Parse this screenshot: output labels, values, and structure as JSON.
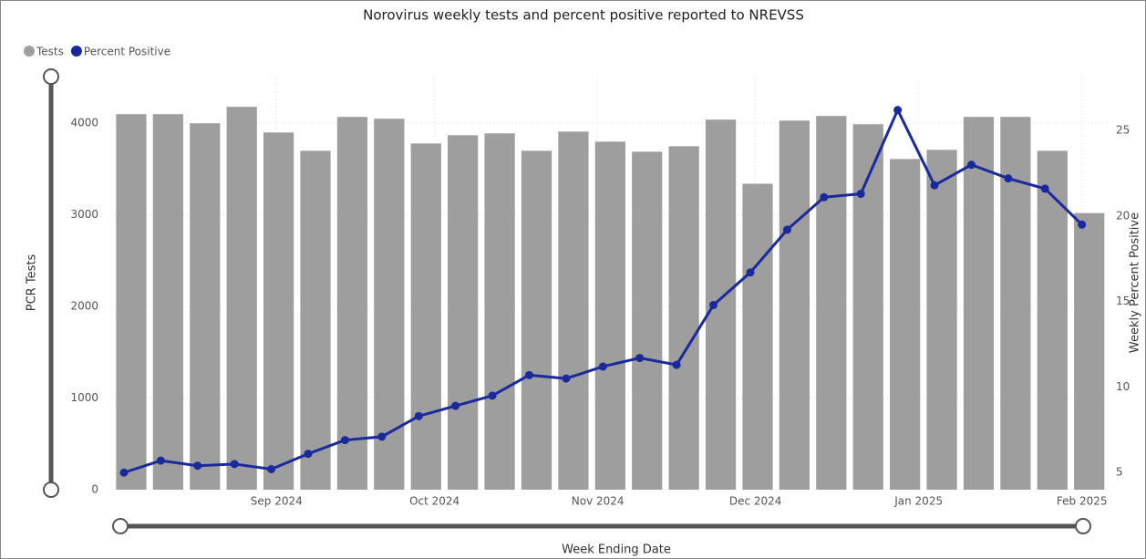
{
  "chart_data": {
    "type": "bar-line",
    "title": "Norovirus weekly tests and percent positive reported to NREVSS",
    "x_label": "Week Ending Date",
    "y_label": "PCR Tests",
    "y2_label": "Weekly Percent Positive",
    "categories": [
      null,
      null,
      null,
      null,
      null,
      null,
      null,
      null,
      null,
      null,
      null,
      null,
      null,
      null,
      null,
      null,
      null,
      null,
      null,
      null,
      null,
      null,
      null,
      null,
      null,
      null,
      null
    ],
    "x": [
      0,
      1,
      2,
      3,
      4,
      5,
      6,
      7,
      8,
      9,
      10,
      11,
      12,
      13,
      14,
      15,
      16,
      17,
      18,
      19,
      20,
      21,
      22,
      23,
      24,
      25,
      26
    ],
    "xlim": [
      -0.37,
      26.7
    ],
    "xticks": [
      {
        "value": 4.14,
        "label": "Sep 2024"
      },
      {
        "value": 8.43,
        "label": "Oct 2024"
      },
      {
        "value": 12.86,
        "label": "Nov 2024"
      },
      {
        "value": 17.14,
        "label": "Dec 2024"
      },
      {
        "value": 21.57,
        "label": "Jan 2025"
      },
      {
        "value": 26,
        "label": "Feb 2025"
      }
    ],
    "ylim": [
      0,
      4500
    ],
    "yticks": [
      0,
      1000,
      2000,
      3000,
      4000
    ],
    "y2lim": [
      4,
      28.1
    ],
    "y2ticks": [
      5,
      10,
      15,
      20,
      25
    ],
    "grid": true,
    "legend": "top-left",
    "series": [
      {
        "name": "Tests",
        "type": "bar",
        "color": "#9e9e9e",
        "values": [
          4100,
          4100,
          4000,
          4180,
          3900,
          3700,
          4070,
          4050,
          3780,
          3870,
          3890,
          3700,
          3910,
          3800,
          3690,
          3750,
          4040,
          3340,
          4030,
          4080,
          3990,
          3610,
          3710,
          4070,
          4070,
          3700,
          3020
        ]
      },
      {
        "name": "Percent Positive",
        "type": "line",
        "axis": "y2",
        "color": "#1a2a9c",
        "values": [
          5.0,
          5.7,
          5.4,
          5.5,
          5.2,
          6.1,
          6.9,
          7.1,
          8.3,
          8.9,
          9.5,
          10.7,
          10.5,
          11.2,
          11.7,
          11.3,
          14.8,
          16.7,
          19.2,
          21.1,
          21.3,
          26.2,
          21.8,
          23.0,
          22.2,
          21.6,
          19.5
        ]
      }
    ]
  }
}
